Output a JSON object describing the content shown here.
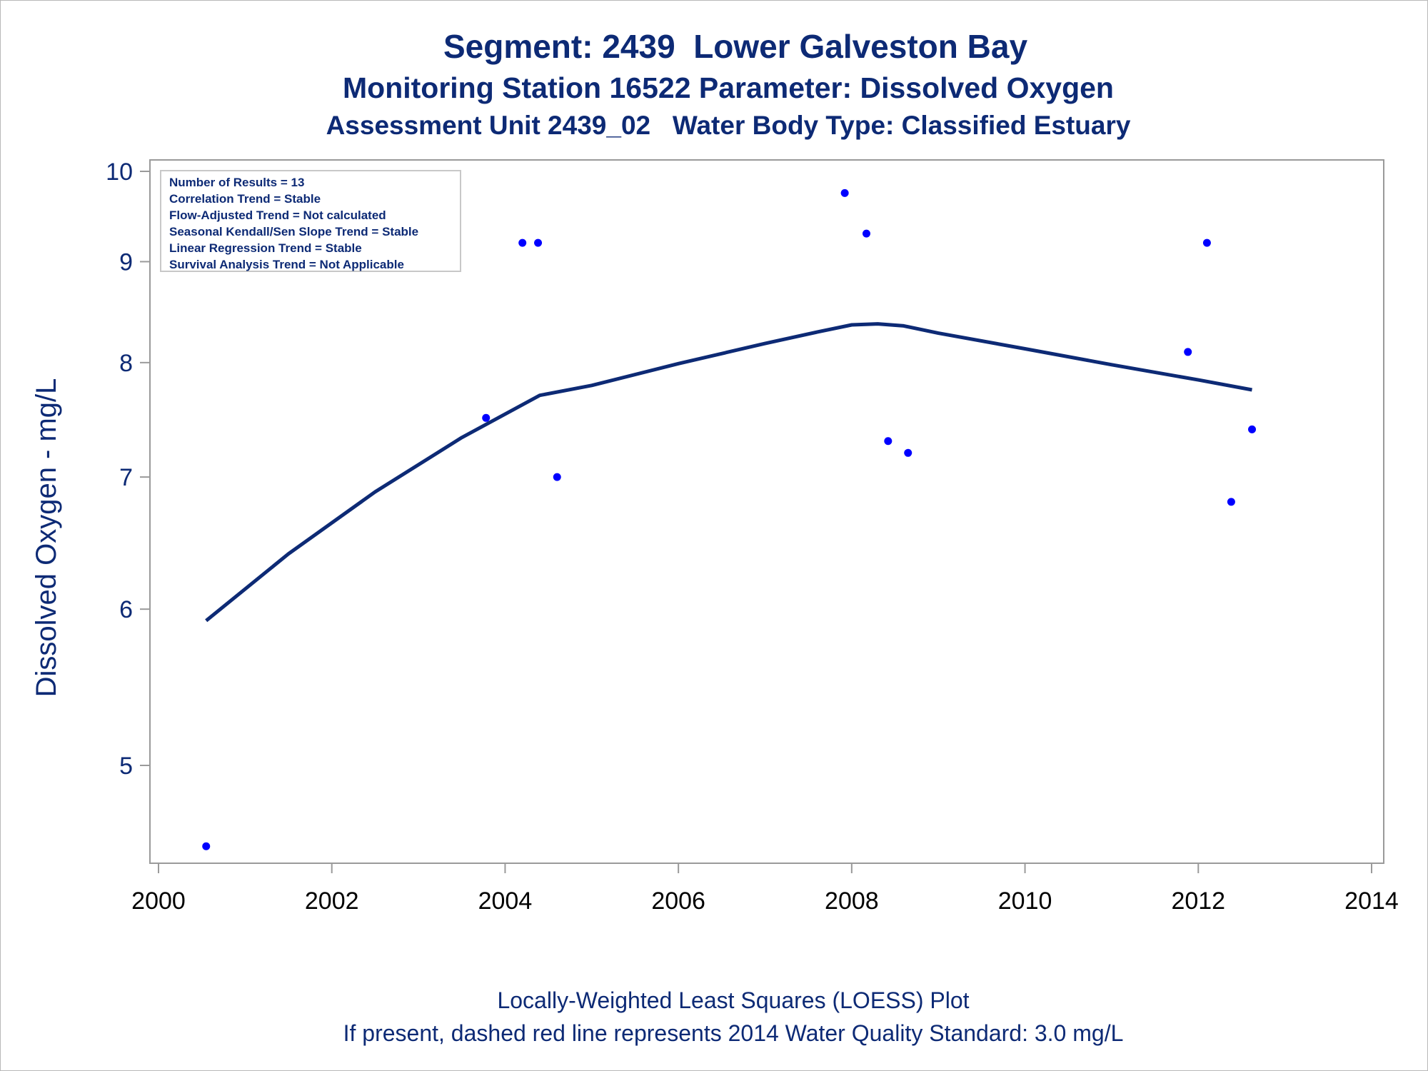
{
  "chart_data": {
    "type": "scatter",
    "title": "Segment: 2439  Lower Galveston Bay",
    "subtitle_1": "Monitoring Station 16522 Parameter: Dissolved Oxygen",
    "subtitle_2": "Assessment Unit 2439_02   Water Body Type: Classified Estuary",
    "ylabel": "Dissolved Oxygen - mg/L",
    "xlabel": "",
    "y_scale": "log",
    "x_ticks": [
      "2000",
      "2002",
      "2004",
      "2006",
      "2008",
      "2010",
      "2012",
      "2014"
    ],
    "y_ticks": [
      "5",
      "6",
      "7",
      "8",
      "9",
      "10"
    ],
    "xlim": [
      2000,
      2014
    ],
    "ylim": [
      4.45,
      10
    ],
    "grid": false,
    "stats_box": {
      "placement": "top-left",
      "lines": [
        "Number of Results = 13",
        "Correlation Trend = Stable",
        "Flow-Adjusted Trend = Not calculated",
        "Seasonal Kendall/Sen Slope Trend = Stable",
        "Linear Regression Trend = Stable",
        "Survival Analysis Trend = Not Applicable"
      ]
    },
    "series": [
      {
        "kind": "points",
        "color": "#0000ff",
        "points": [
          {
            "x": 2000.55,
            "y": 4.55
          },
          {
            "x": 2003.78,
            "y": 7.5
          },
          {
            "x": 2004.2,
            "y": 9.2
          },
          {
            "x": 2004.38,
            "y": 9.2
          },
          {
            "x": 2004.6,
            "y": 7.0
          },
          {
            "x": 2007.92,
            "y": 9.75
          },
          {
            "x": 2008.17,
            "y": 9.3
          },
          {
            "x": 2008.42,
            "y": 7.3
          },
          {
            "x": 2008.65,
            "y": 7.2
          },
          {
            "x": 2011.88,
            "y": 8.1
          },
          {
            "x": 2012.1,
            "y": 9.2
          },
          {
            "x": 2012.38,
            "y": 6.8
          },
          {
            "x": 2012.62,
            "y": 7.4
          }
        ]
      },
      {
        "kind": "loess-line",
        "color": "#0d2a75",
        "points": [
          {
            "x": 2000.55,
            "y": 5.92
          },
          {
            "x": 2001.5,
            "y": 6.4
          },
          {
            "x": 2002.5,
            "y": 6.88
          },
          {
            "x": 2003.5,
            "y": 7.33
          },
          {
            "x": 2004.4,
            "y": 7.7
          },
          {
            "x": 2005.0,
            "y": 7.79
          },
          {
            "x": 2006.0,
            "y": 7.99
          },
          {
            "x": 2007.0,
            "y": 8.18
          },
          {
            "x": 2007.6,
            "y": 8.29
          },
          {
            "x": 2008.0,
            "y": 8.36
          },
          {
            "x": 2008.3,
            "y": 8.37
          },
          {
            "x": 2008.6,
            "y": 8.35
          },
          {
            "x": 2009.0,
            "y": 8.28
          },
          {
            "x": 2010.0,
            "y": 8.13
          },
          {
            "x": 2011.0,
            "y": 7.98
          },
          {
            "x": 2012.0,
            "y": 7.84
          },
          {
            "x": 2012.62,
            "y": 7.75
          }
        ]
      }
    ]
  },
  "footer": {
    "line1": "Locally-Weighted Least Squares (LOESS) Plot",
    "line2": "If present, dashed red line represents 2014 Water Quality Standard: 3.0 mg/L"
  }
}
